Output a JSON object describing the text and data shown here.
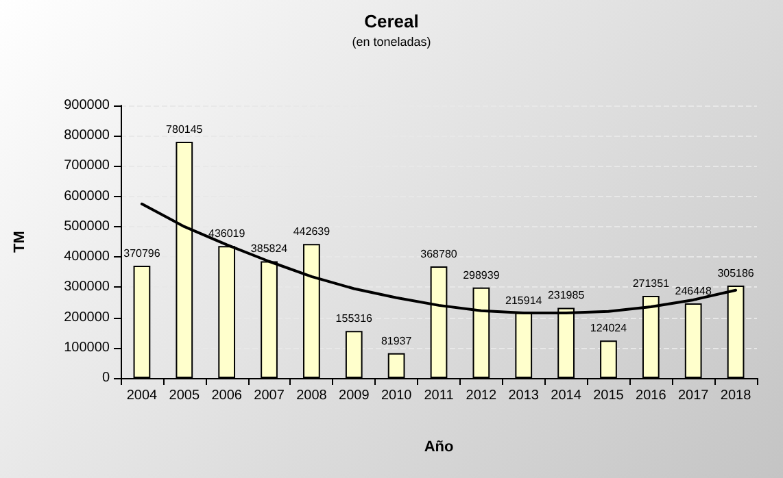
{
  "chart_data": {
    "type": "bar",
    "title": "Cereal",
    "subtitle": "(en toneladas)",
    "xlabel": "Año",
    "ylabel": "TM",
    "categories": [
      "2004",
      "2005",
      "2006",
      "2007",
      "2008",
      "2009",
      "2010",
      "2011",
      "2012",
      "2013",
      "2014",
      "2015",
      "2016",
      "2017",
      "2018"
    ],
    "series": [
      {
        "color": "#ffffcc",
        "values": [
          370796,
          780145,
          436019,
          385824,
          442639,
          155316,
          81937,
          368780,
          298939,
          215914,
          231985,
          124024,
          271351,
          246448,
          305186
        ],
        "data_labels": true
      },
      {
        "type": "line",
        "color": "#000000",
        "values": [
          575000,
          500000,
          440000,
          385000,
          335000,
          295000,
          265000,
          240000,
          222000,
          215000,
          215000,
          220000,
          235000,
          258000,
          290000
        ],
        "marker": "none",
        "line_style": "solid"
      }
    ],
    "ylim": [
      0,
      900000
    ],
    "yticks": [
      0,
      100000,
      200000,
      300000,
      400000,
      500000,
      600000,
      700000,
      800000,
      900000
    ],
    "grid": "y"
  }
}
